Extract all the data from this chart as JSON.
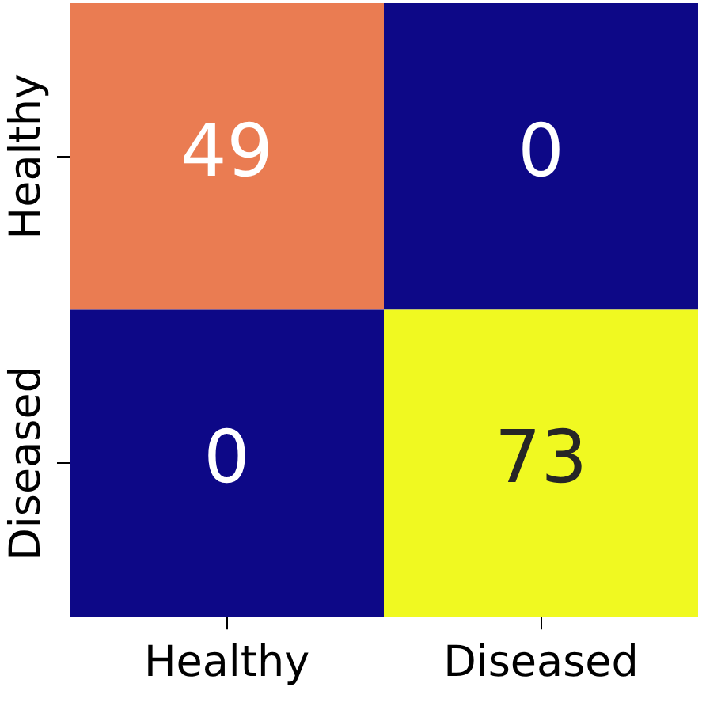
{
  "chart_data": {
    "type": "heatmap",
    "categories": [
      "Healthy",
      "Diseased"
    ],
    "y_categories": [
      "Healthy",
      "Diseased"
    ],
    "cells": [
      [
        49,
        0
      ],
      [
        0,
        73
      ]
    ],
    "data_labels": true
  }
}
